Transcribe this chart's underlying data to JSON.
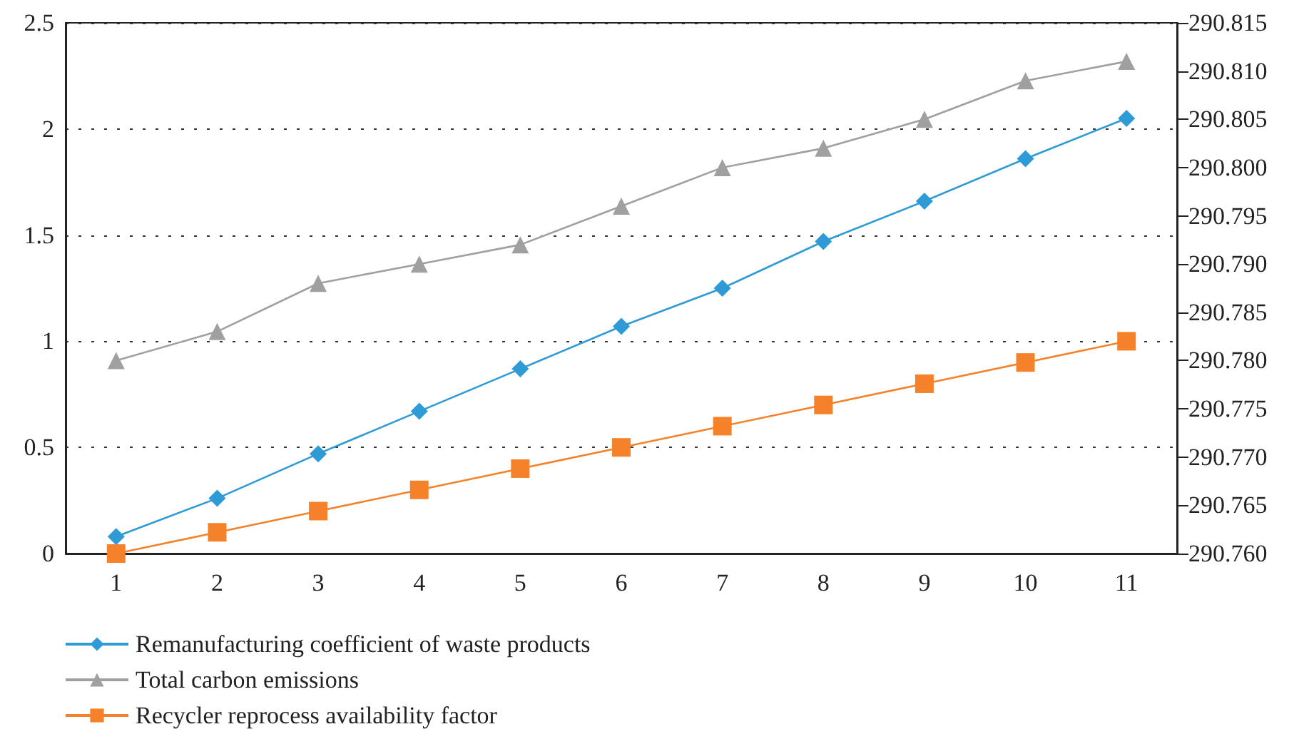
{
  "chart_data": {
    "type": "line",
    "categories": [
      "1",
      "2",
      "3",
      "4",
      "5",
      "6",
      "7",
      "8",
      "9",
      "10",
      "11"
    ],
    "series": [
      {
        "name": "Remanufacturing coefficient of waste products",
        "color": "#2e9bd6",
        "marker": "diamond",
        "values": [
          0.08,
          0.26,
          0.47,
          0.67,
          0.87,
          1.07,
          1.25,
          1.47,
          1.66,
          1.86,
          2.05
        ]
      },
      {
        "name": "Total carbon emissions",
        "color": "#a0a0a0",
        "marker": "triangle",
        "axis": "y2",
        "values": [
          290.78,
          290.783,
          290.788,
          290.79,
          290.792,
          290.796,
          290.8,
          290.802,
          290.805,
          290.809,
          290.811
        ]
      },
      {
        "name": "Recycler reprocess availability factor",
        "color": "#f5822a",
        "marker": "square",
        "values": [
          0,
          0.1,
          0.2,
          0.3,
          0.4,
          0.5,
          0.6,
          0.7,
          0.8,
          0.9,
          1.0
        ]
      }
    ],
    "ylim": [
      0,
      2.5
    ],
    "yticks": [
      0,
      0.5,
      1,
      1.5,
      2,
      2.5
    ],
    "y2lim": [
      290.76,
      290.815
    ],
    "y2ticks": [
      {
        "value": 290.76,
        "label": "290.760"
      },
      {
        "value": 290.765,
        "label": "290.765"
      },
      {
        "value": 290.77,
        "label": "290.770"
      },
      {
        "value": 290.775,
        "label": "290.775"
      },
      {
        "value": 290.78,
        "label": "290.780"
      },
      {
        "value": 290.785,
        "label": "290.785"
      },
      {
        "value": 290.79,
        "label": "290.790"
      },
      {
        "value": 290.795,
        "label": "290.795"
      },
      {
        "value": 290.8,
        "label": "290.800"
      },
      {
        "value": 290.805,
        "label": "290.805"
      },
      {
        "value": 290.81,
        "label": "290.810"
      },
      {
        "value": 290.815,
        "label": "290.815"
      }
    ],
    "grid": "y",
    "legend": "bottom left",
    "line_style": "solid"
  }
}
